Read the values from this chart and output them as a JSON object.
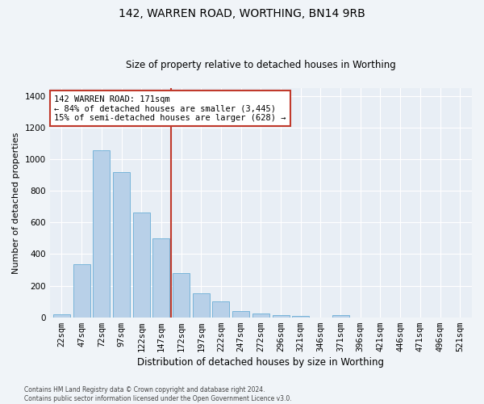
{
  "title": "142, WARREN ROAD, WORTHING, BN14 9RB",
  "subtitle": "Size of property relative to detached houses in Worthing",
  "xlabel": "Distribution of detached houses by size in Worthing",
  "ylabel": "Number of detached properties",
  "categories": [
    "22sqm",
    "47sqm",
    "72sqm",
    "97sqm",
    "122sqm",
    "147sqm",
    "172sqm",
    "197sqm",
    "222sqm",
    "247sqm",
    "272sqm",
    "296sqm",
    "321sqm",
    "346sqm",
    "371sqm",
    "396sqm",
    "421sqm",
    "446sqm",
    "471sqm",
    "496sqm",
    "521sqm"
  ],
  "values": [
    18,
    335,
    1058,
    920,
    665,
    500,
    280,
    150,
    100,
    40,
    22,
    15,
    10,
    0,
    12,
    0,
    0,
    0,
    0,
    0,
    0
  ],
  "bar_color": "#b8d0e8",
  "bar_edge_color": "#6aaed6",
  "plot_bg_color": "#e8eef5",
  "fig_bg_color": "#f0f4f8",
  "grid_color": "#ffffff",
  "property_line_color": "#c0392b",
  "property_line_index": 5.5,
  "annotation_text": "142 WARREN ROAD: 171sqm\n← 84% of detached houses are smaller (3,445)\n15% of semi-detached houses are larger (628) →",
  "annotation_box_edgecolor": "#c0392b",
  "annotation_facecolor": "#ffffff",
  "footer": "Contains HM Land Registry data © Crown copyright and database right 2024.\nContains public sector information licensed under the Open Government Licence v3.0.",
  "ylim": [
    0,
    1450
  ],
  "yticks": [
    0,
    200,
    400,
    600,
    800,
    1000,
    1200,
    1400
  ],
  "title_fontsize": 10,
  "subtitle_fontsize": 8.5,
  "ylabel_fontsize": 8,
  "xlabel_fontsize": 8.5,
  "tick_fontsize": 7.5,
  "annotation_fontsize": 7.5,
  "footer_fontsize": 5.5
}
